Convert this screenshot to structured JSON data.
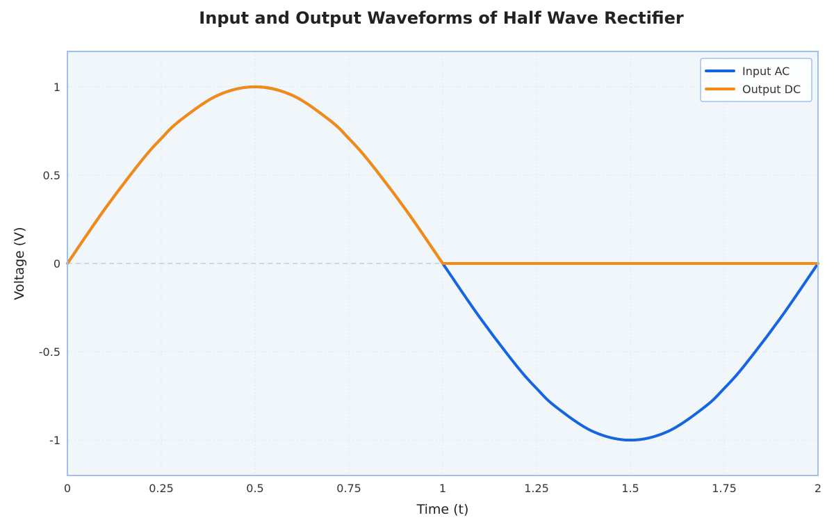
{
  "chart_data": {
    "type": "line",
    "title": "Input and Output Waveforms of Half Wave Rectifier",
    "xlabel": "Time (t)",
    "ylabel": "Voltage (V)",
    "xlim": [
      0,
      2
    ],
    "ylim": [
      -1.2,
      1.2
    ],
    "x_ticks": [
      0,
      0.25,
      0.5,
      0.75,
      1,
      1.25,
      1.5,
      1.75,
      2
    ],
    "x_tick_labels": [
      "0",
      "0.25",
      "0.5",
      "0.75",
      "1",
      "1.25",
      "1.5",
      "1.75",
      "2"
    ],
    "y_ticks": [
      1,
      0.5,
      0,
      -0.5,
      -1
    ],
    "y_tick_labels": [
      "1",
      "0.5",
      "0",
      "-0.5",
      "-1"
    ],
    "grid": true,
    "legend_position": "top-right",
    "zero_line": true,
    "series": [
      {
        "name": "Input AC",
        "color": "#1565e0",
        "x": [
          0,
          0.1,
          0.2,
          0.25,
          0.3,
          0.4,
          0.5,
          0.6,
          0.7,
          0.75,
          0.8,
          0.9,
          1,
          1.1,
          1.2,
          1.25,
          1.3,
          1.4,
          1.5,
          1.6,
          1.7,
          1.75,
          1.8,
          1.9,
          2
        ],
        "y": [
          0,
          0.309,
          0.588,
          0.707,
          0.809,
          0.951,
          1,
          0.951,
          0.809,
          0.707,
          0.588,
          0.309,
          0,
          -0.309,
          -0.588,
          -0.707,
          -0.809,
          -0.951,
          -1,
          -0.951,
          -0.809,
          -0.707,
          -0.588,
          -0.309,
          0
        ]
      },
      {
        "name": "Output DC",
        "color": "#f58a13",
        "x": [
          0,
          0.1,
          0.2,
          0.25,
          0.3,
          0.4,
          0.5,
          0.6,
          0.7,
          0.75,
          0.8,
          0.9,
          1,
          1.1,
          1.2,
          1.25,
          1.3,
          1.4,
          1.5,
          1.6,
          1.7,
          1.75,
          1.8,
          1.9,
          2
        ],
        "y": [
          0,
          0.309,
          0.588,
          0.707,
          0.809,
          0.951,
          1,
          0.951,
          0.809,
          0.707,
          0.588,
          0.309,
          0,
          0,
          0,
          0,
          0,
          0,
          0,
          0,
          0,
          0,
          0,
          0,
          0
        ]
      }
    ],
    "colors": {
      "plot_background": "#f1f6fb",
      "plot_border": "#9fc0ef",
      "grid": "#dde6f2",
      "zero_line": "#b8cff0"
    }
  }
}
